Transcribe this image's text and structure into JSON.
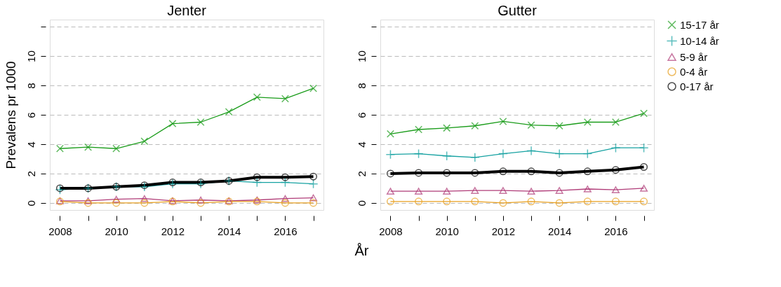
{
  "chart_data": [
    {
      "type": "line",
      "title": "Jenter",
      "xlabel": "År",
      "ylabel": "Prevalens pr 1000",
      "x": [
        2008,
        2009,
        2010,
        2011,
        2012,
        2013,
        2014,
        2015,
        2016,
        2017
      ],
      "series": [
        {
          "color": "#1a9c1a",
          "marker": "cross",
          "values": [
            3.7,
            3.8,
            3.7,
            4.2,
            5.4,
            5.5,
            6.2,
            7.2,
            7.1,
            7.8
          ]
        },
        {
          "color": "#17a2a2",
          "marker": "plus",
          "values": [
            0.9,
            1.0,
            1.1,
            1.1,
            1.3,
            1.3,
            1.5,
            1.4,
            1.4,
            1.3
          ]
        },
        {
          "color": "#b03c78",
          "marker": "triangle",
          "values": [
            0.15,
            0.15,
            0.25,
            0.3,
            0.15,
            0.2,
            0.15,
            0.2,
            0.3,
            0.35
          ]
        },
        {
          "color": "#e8a020",
          "marker": "circle",
          "values": [
            0.1,
            0.0,
            0.0,
            0.0,
            0.1,
            0.0,
            0.1,
            0.1,
            0.0,
            0.0
          ]
        },
        {
          "color": "#000000",
          "marker": "circle",
          "values": [
            1.0,
            1.0,
            1.1,
            1.2,
            1.4,
            1.4,
            1.5,
            1.75,
            1.75,
            1.8
          ]
        }
      ],
      "xlim": [
        2007.64,
        2017.36
      ],
      "xticks": [
        2008,
        {
          "value": 2009,
          "label": null
        },
        2010,
        {
          "value": 2011,
          "label": null
        },
        2012,
        {
          "value": 2013,
          "label": null
        },
        2014,
        {
          "value": 2015,
          "label": null
        },
        2016,
        {
          "value": 2017,
          "label": null
        }
      ],
      "ylim": [
        -0.48,
        12.48
      ],
      "yticks": [
        0,
        2,
        4,
        6,
        8,
        10,
        {
          "value": 12,
          "label": null
        }
      ],
      "grid": "y",
      "legend": false
    },
    {
      "type": "line",
      "title": "Gutter",
      "x": [
        2008,
        2009,
        2010,
        2011,
        2012,
        2013,
        2014,
        2015,
        2016,
        2017
      ],
      "series": [
        {
          "name": "15-17 år",
          "color": "#1a9c1a",
          "marker": "cross",
          "values": [
            4.7,
            5.0,
            5.1,
            5.25,
            5.55,
            5.3,
            5.25,
            5.5,
            5.5,
            6.1
          ]
        },
        {
          "name": "10-14 år",
          "color": "#17a2a2",
          "marker": "plus",
          "values": [
            3.3,
            3.35,
            3.2,
            3.1,
            3.35,
            3.55,
            3.35,
            3.35,
            3.75,
            3.75
          ]
        },
        {
          "name": "5-9 år",
          "color": "#b03c78",
          "marker": "triangle",
          "values": [
            0.8,
            0.8,
            0.8,
            0.85,
            0.85,
            0.8,
            0.85,
            0.95,
            0.9,
            1.0
          ]
        },
        {
          "name": "0-4 år",
          "color": "#e8a020",
          "marker": "circle",
          "values": [
            0.1,
            0.1,
            0.1,
            0.1,
            0.0,
            0.1,
            0.0,
            0.1,
            0.1,
            0.1
          ]
        },
        {
          "name": "0-17 år",
          "color": "#000000",
          "marker": "circle",
          "values": [
            2.0,
            2.05,
            2.05,
            2.05,
            2.15,
            2.15,
            2.05,
            2.15,
            2.25,
            2.45
          ]
        }
      ],
      "xlim": [
        2007.64,
        2017.36
      ],
      "xticks": [
        2008,
        {
          "value": 2009,
          "label": null
        },
        2010,
        {
          "value": 2011,
          "label": null
        },
        2012,
        {
          "value": 2013,
          "label": null
        },
        2014,
        {
          "value": 2015,
          "label": null
        },
        2016,
        {
          "value": 2017,
          "label": null
        }
      ],
      "ylim": [
        -0.48,
        12.48
      ],
      "yticks": [
        0,
        2,
        4,
        6,
        8,
        10,
        {
          "value": 12,
          "label": null
        }
      ],
      "grid": "y",
      "legend": "right"
    }
  ]
}
